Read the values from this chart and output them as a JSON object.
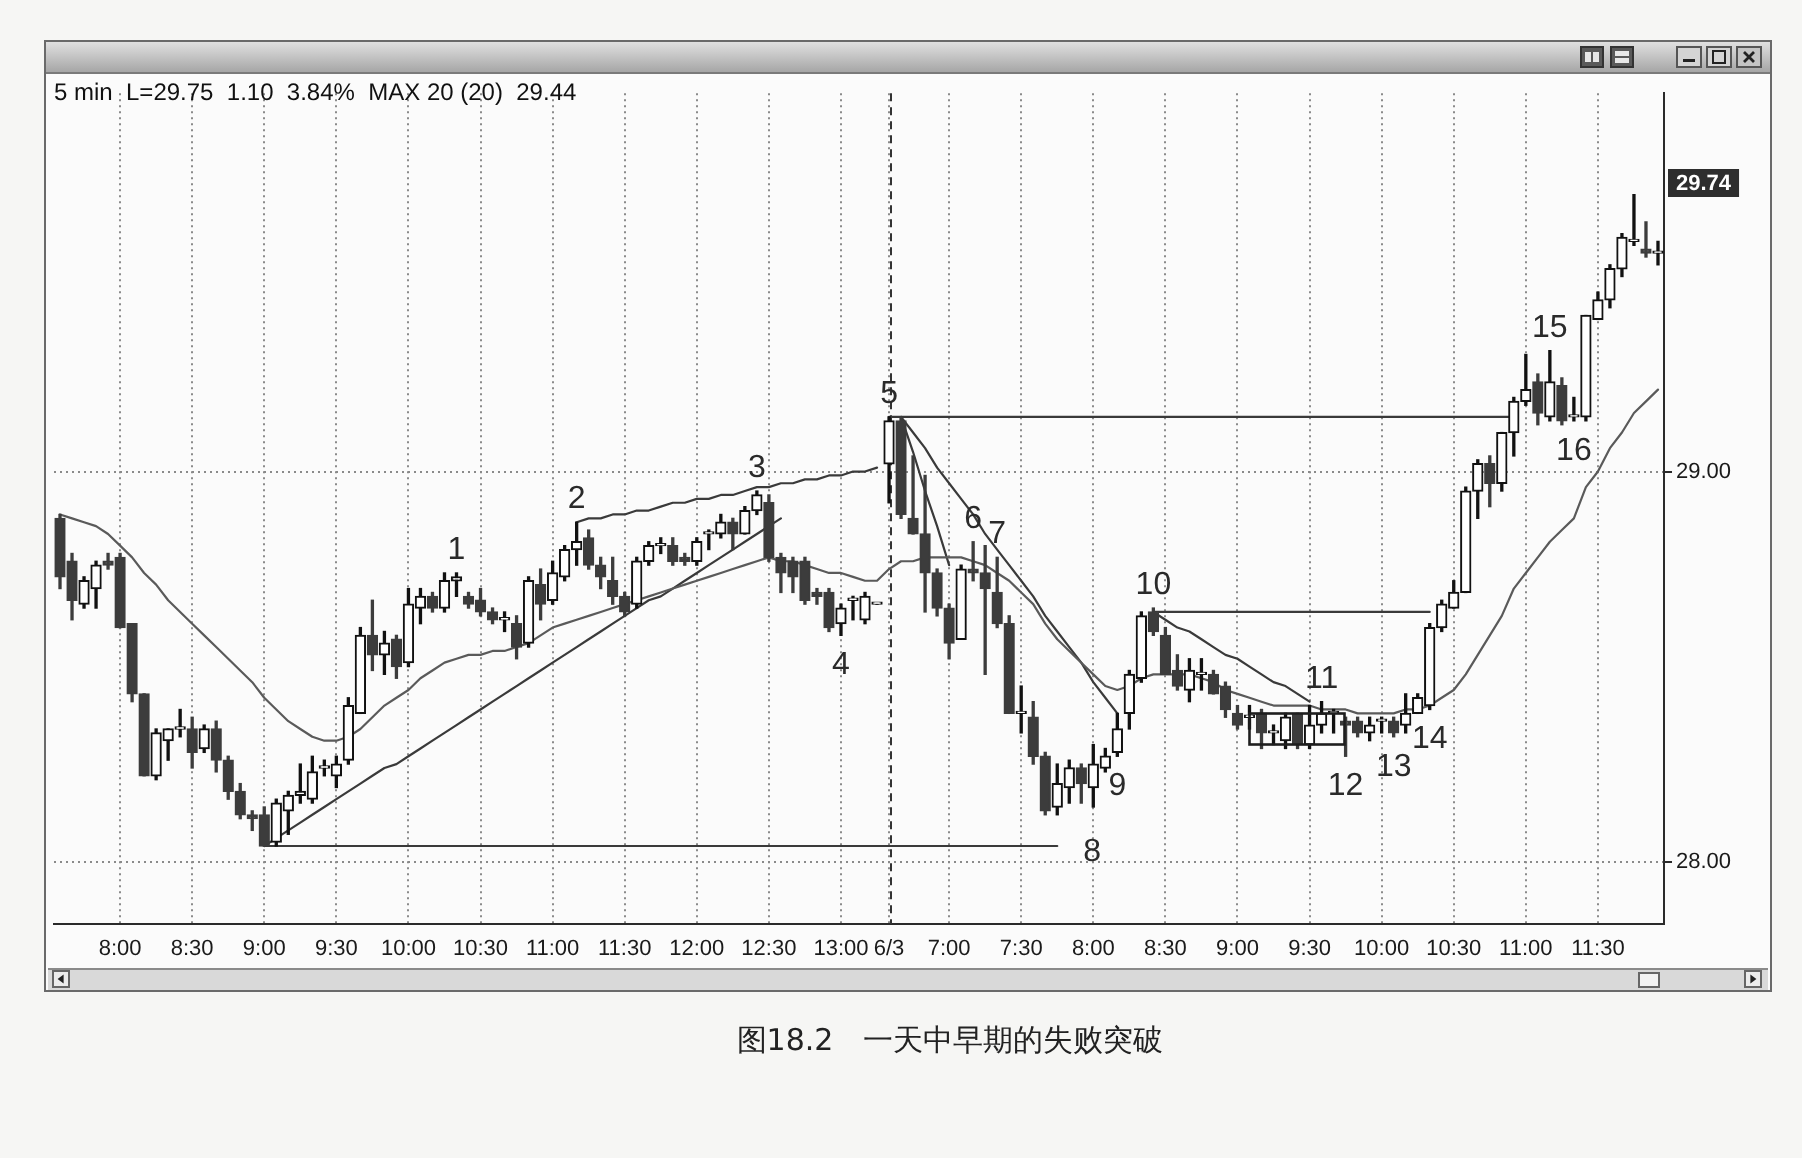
{
  "chart_data": {
    "type": "candlestick",
    "title": "图18.2　一天中早期的失败突破",
    "subtitle": "5 min  L=29.75  1.10  3.84%  MAX 20 (20)  29.44",
    "categories": [
      null,
      null,
      null,
      null,
      null,
      "8:00",
      null,
      null,
      null,
      null,
      null,
      "8:30",
      null,
      null,
      null,
      null,
      null,
      "9:00",
      null,
      null,
      null,
      null,
      null,
      "9:30",
      null,
      null,
      null,
      null,
      null,
      "10:00",
      null,
      null,
      null,
      null,
      null,
      "10:30",
      null,
      null,
      null,
      null,
      null,
      "11:00",
      null,
      null,
      null,
      null,
      null,
      "11:30",
      null,
      null,
      null,
      null,
      null,
      "12:00",
      null,
      null,
      null,
      null,
      null,
      "12:30",
      null,
      null,
      null,
      null,
      null,
      "13:00",
      null,
      null,
      null,
      "6/3",
      null,
      null,
      null,
      null,
      "7:00",
      null,
      null,
      null,
      null,
      null,
      "7:30",
      null,
      null,
      null,
      null,
      null,
      "8:00",
      null,
      null,
      null,
      null,
      null,
      "8:30",
      null,
      null,
      null,
      null,
      null,
      "9:00",
      null,
      null,
      null,
      null,
      null,
      "9:30",
      null,
      null,
      null,
      null,
      null,
      "10:00",
      null,
      null,
      null,
      null,
      null,
      "10:30",
      null,
      null,
      null,
      null,
      null,
      "11:00",
      null,
      null,
      null,
      null,
      null,
      "11:30",
      null,
      null,
      null,
      null,
      null
    ],
    "ohlc": [
      [
        28.88,
        28.89,
        28.7,
        28.73
      ],
      [
        28.77,
        28.79,
        28.62,
        28.67
      ],
      [
        28.66,
        28.73,
        28.65,
        28.72
      ],
      [
        28.7,
        28.77,
        28.65,
        28.76
      ],
      [
        28.77,
        28.79,
        28.75,
        28.76
      ],
      [
        28.78,
        28.79,
        28.6,
        28.6
      ],
      [
        28.61,
        28.61,
        28.41,
        28.43
      ],
      [
        28.43,
        28.43,
        28.22,
        28.22
      ],
      [
        28.22,
        28.34,
        28.21,
        28.33
      ],
      [
        28.31,
        28.34,
        28.26,
        28.34
      ],
      [
        28.34,
        28.39,
        28.32,
        28.34
      ],
      [
        28.34,
        28.37,
        28.24,
        28.28
      ],
      [
        28.29,
        28.35,
        28.28,
        28.34
      ],
      [
        28.34,
        28.36,
        28.23,
        28.26
      ],
      [
        28.26,
        28.27,
        28.16,
        28.18
      ],
      [
        28.18,
        28.2,
        28.11,
        28.12
      ],
      [
        28.12,
        28.13,
        28.08,
        28.11
      ],
      [
        28.12,
        28.14,
        28.04,
        28.04
      ],
      [
        28.05,
        28.16,
        28.04,
        28.15
      ],
      [
        28.13,
        28.18,
        28.07,
        28.17
      ],
      [
        28.17,
        28.25,
        28.15,
        28.18
      ],
      [
        28.16,
        28.27,
        28.15,
        28.23
      ],
      [
        28.24,
        28.26,
        28.22,
        28.24
      ],
      [
        28.22,
        28.27,
        28.19,
        28.25
      ],
      [
        28.26,
        28.42,
        28.25,
        28.4
      ],
      [
        28.38,
        28.6,
        28.38,
        28.58
      ],
      [
        28.58,
        28.67,
        28.49,
        28.53
      ],
      [
        28.53,
        28.59,
        28.48,
        28.56
      ],
      [
        28.57,
        28.58,
        28.47,
        28.5
      ],
      [
        28.51,
        28.7,
        28.5,
        28.66
      ],
      [
        28.65,
        28.7,
        28.61,
        28.68
      ],
      [
        28.68,
        28.69,
        28.64,
        28.65
      ],
      [
        28.65,
        28.74,
        28.64,
        28.72
      ],
      [
        28.72,
        28.74,
        28.68,
        28.73
      ],
      [
        28.68,
        28.69,
        28.65,
        28.66
      ],
      [
        28.67,
        28.7,
        28.63,
        28.64
      ],
      [
        28.64,
        28.65,
        28.61,
        28.62
      ],
      [
        28.62,
        28.64,
        28.59,
        28.62
      ],
      [
        28.61,
        28.63,
        28.52,
        28.55
      ],
      [
        28.56,
        28.73,
        28.55,
        28.72
      ],
      [
        28.71,
        28.75,
        28.62,
        28.66
      ],
      [
        28.67,
        28.77,
        28.66,
        28.74
      ],
      [
        28.73,
        28.81,
        28.72,
        28.8
      ],
      [
        28.8,
        28.87,
        28.76,
        28.82
      ],
      [
        28.83,
        28.85,
        28.75,
        28.76
      ],
      [
        28.76,
        28.78,
        28.7,
        28.73
      ],
      [
        28.72,
        28.78,
        28.66,
        28.68
      ],
      [
        28.68,
        28.69,
        28.63,
        28.64
      ],
      [
        28.66,
        28.78,
        28.65,
        28.77
      ],
      [
        28.77,
        28.82,
        28.76,
        28.81
      ],
      [
        28.81,
        28.83,
        28.79,
        28.81
      ],
      [
        28.81,
        28.83,
        28.76,
        28.77
      ],
      [
        28.78,
        28.79,
        28.76,
        28.77
      ],
      [
        28.77,
        28.83,
        28.76,
        28.82
      ],
      [
        28.84,
        28.85,
        28.8,
        28.84
      ],
      [
        28.84,
        28.89,
        28.83,
        28.87
      ],
      [
        28.87,
        28.88,
        28.8,
        28.84
      ],
      [
        28.84,
        28.91,
        28.84,
        28.9
      ],
      [
        28.9,
        28.95,
        28.89,
        28.94
      ],
      [
        28.92,
        28.94,
        28.77,
        28.78
      ],
      [
        28.78,
        28.79,
        28.69,
        28.74
      ],
      [
        28.77,
        28.78,
        28.69,
        28.73
      ],
      [
        28.77,
        28.78,
        28.66,
        28.67
      ],
      [
        28.69,
        28.7,
        28.66,
        28.68
      ],
      [
        28.69,
        28.7,
        28.59,
        28.6
      ],
      [
        28.61,
        28.66,
        28.58,
        28.65
      ],
      [
        28.67,
        28.68,
        28.62,
        28.67
      ],
      [
        28.62,
        28.69,
        28.61,
        28.68
      ],
      [
        28.66,
        28.66,
        28.66,
        28.66
      ],
      [
        29.02,
        29.14,
        28.92,
        29.13
      ],
      [
        29.13,
        29.14,
        28.88,
        28.89
      ],
      [
        28.88,
        29.04,
        28.84,
        28.84
      ],
      [
        28.84,
        28.99,
        28.64,
        28.74
      ],
      [
        28.74,
        28.75,
        28.63,
        28.65
      ],
      [
        28.65,
        28.66,
        28.52,
        28.56
      ],
      [
        28.57,
        28.76,
        28.57,
        28.75
      ],
      [
        28.75,
        28.82,
        28.72,
        28.74
      ],
      [
        28.74,
        28.81,
        28.48,
        28.7
      ],
      [
        28.69,
        28.78,
        28.6,
        28.61
      ],
      [
        28.61,
        28.63,
        28.38,
        28.38
      ],
      [
        28.38,
        28.45,
        28.33,
        28.38
      ],
      [
        28.37,
        28.41,
        28.25,
        28.27
      ],
      [
        28.27,
        28.28,
        28.12,
        28.13
      ],
      [
        28.14,
        28.25,
        28.12,
        28.2
      ],
      [
        28.19,
        28.26,
        28.15,
        28.24
      ],
      [
        28.24,
        28.25,
        28.15,
        28.2
      ],
      [
        28.19,
        28.3,
        28.14,
        28.25
      ],
      [
        28.24,
        28.29,
        28.23,
        28.27
      ],
      [
        28.28,
        28.38,
        28.27,
        28.34
      ],
      [
        28.38,
        28.49,
        28.34,
        28.48
      ],
      [
        28.47,
        28.64,
        28.46,
        28.63
      ],
      [
        28.64,
        28.65,
        28.58,
        28.59
      ],
      [
        28.58,
        28.6,
        28.48,
        28.48
      ],
      [
        28.49,
        28.53,
        28.44,
        28.45
      ],
      [
        28.44,
        28.52,
        28.41,
        28.49
      ],
      [
        28.48,
        28.52,
        28.44,
        28.48
      ],
      [
        28.48,
        28.49,
        28.43,
        28.43
      ],
      [
        28.45,
        28.46,
        28.37,
        28.39
      ],
      [
        28.38,
        28.4,
        28.34,
        28.35
      ],
      [
        28.37,
        28.4,
        28.34,
        28.37
      ],
      [
        28.38,
        28.39,
        28.29,
        28.33
      ],
      [
        28.33,
        28.35,
        28.3,
        28.33
      ],
      [
        28.31,
        28.38,
        28.29,
        28.37
      ],
      [
        28.38,
        28.38,
        28.29,
        28.3
      ],
      [
        28.3,
        28.4,
        28.29,
        28.35
      ],
      [
        28.35,
        28.41,
        28.33,
        28.38
      ],
      [
        28.38,
        28.39,
        28.33,
        28.38
      ],
      [
        28.36,
        28.37,
        28.27,
        28.35
      ],
      [
        28.36,
        28.37,
        28.32,
        28.33
      ],
      [
        28.33,
        28.37,
        28.31,
        28.35
      ],
      [
        28.36,
        28.37,
        28.33,
        28.36
      ],
      [
        28.36,
        28.37,
        28.32,
        28.33
      ],
      [
        28.35,
        28.43,
        28.33,
        28.38
      ],
      [
        28.38,
        28.43,
        28.38,
        28.42
      ],
      [
        28.4,
        28.61,
        28.39,
        28.6
      ],
      [
        28.6,
        28.67,
        28.59,
        28.66
      ],
      [
        28.65,
        28.72,
        28.65,
        28.69
      ],
      [
        28.69,
        28.96,
        28.69,
        28.95
      ],
      [
        28.95,
        29.03,
        28.88,
        29.02
      ],
      [
        29.02,
        29.04,
        28.91,
        28.97
      ],
      [
        28.97,
        29.1,
        28.95,
        29.1
      ],
      [
        29.1,
        29.19,
        29.04,
        29.18
      ],
      [
        29.18,
        29.3,
        29.17,
        29.21
      ],
      [
        29.23,
        29.25,
        29.12,
        29.15
      ],
      [
        29.14,
        29.31,
        29.13,
        29.23
      ],
      [
        29.22,
        29.24,
        29.12,
        29.13
      ],
      [
        29.14,
        29.19,
        29.13,
        29.14
      ],
      [
        29.14,
        29.4,
        29.13,
        29.4
      ],
      [
        29.39,
        29.46,
        29.39,
        29.44
      ],
      [
        29.44,
        29.53,
        29.42,
        29.52
      ],
      [
        29.52,
        29.61,
        29.5,
        29.6
      ],
      [
        29.59,
        29.71,
        29.58,
        29.59
      ],
      [
        29.57,
        29.64,
        29.55,
        29.56
      ],
      [
        29.56,
        29.59,
        29.53,
        29.56
      ]
    ],
    "value_labels": [
      null,
      null,
      null,
      null,
      null,
      null,
      null,
      null,
      null,
      null,
      null,
      null,
      null,
      null,
      null,
      null,
      null,
      null,
      null,
      null,
      null,
      null,
      null,
      null,
      null,
      null,
      null,
      null,
      null,
      null,
      null,
      null,
      null,
      "1",
      null,
      null,
      null,
      null,
      null,
      null,
      null,
      null,
      null,
      "2",
      null,
      null,
      null,
      null,
      null,
      null,
      null,
      null,
      null,
      null,
      null,
      null,
      null,
      null,
      "3",
      null,
      null,
      null,
      null,
      null,
      null,
      "4",
      null,
      null,
      null,
      "5",
      null,
      null,
      null,
      null,
      null,
      null,
      "6",
      null,
      "7",
      null,
      null,
      null,
      null,
      null,
      null,
      null,
      null,
      null,
      "9",
      null,
      null,
      "10",
      null,
      null,
      null,
      null,
      null,
      null,
      null,
      null,
      null,
      null,
      null,
      null,
      null,
      "11",
      null,
      "12",
      null,
      null,
      null,
      "13",
      null,
      null,
      "14",
      null,
      null,
      null,
      null,
      null,
      null,
      null,
      null,
      null,
      "15",
      null,
      "16",
      null,
      null,
      null,
      null,
      null,
      null,
      null
    ],
    "series": [
      {
        "type": "line",
        "color": "#5a5a5a",
        "values": [
          28.89,
          28.88,
          28.87,
          28.86,
          28.84,
          28.81,
          28.78,
          28.74,
          28.71,
          28.67,
          28.64,
          28.61,
          28.58,
          28.55,
          28.52,
          28.49,
          28.46,
          28.42,
          28.39,
          28.36,
          28.34,
          28.32,
          28.31,
          28.31,
          28.32,
          28.34,
          28.37,
          28.4,
          28.42,
          28.44,
          28.47,
          28.49,
          28.51,
          28.52,
          28.53,
          28.53,
          28.54,
          28.54,
          28.55,
          28.56,
          28.58,
          28.6,
          28.61,
          28.62,
          28.63,
          28.64,
          28.65,
          28.66,
          28.67,
          28.68,
          28.69,
          28.7,
          28.71,
          28.72,
          28.73,
          28.74,
          28.75,
          28.76,
          28.77,
          28.78,
          28.77,
          28.77,
          28.76,
          28.75,
          28.74,
          28.74,
          28.73,
          28.72,
          28.72,
          28.75,
          28.77,
          28.77,
          28.78,
          28.78,
          28.78,
          28.78,
          28.77,
          28.76,
          28.74,
          28.72,
          28.69,
          28.66,
          28.61,
          28.57,
          28.54,
          28.51,
          28.48,
          28.45,
          28.44,
          28.45,
          28.47,
          28.48,
          28.48,
          28.48,
          28.48,
          28.47,
          28.46,
          28.44,
          28.43,
          28.42,
          28.41,
          28.4,
          28.4,
          28.4,
          28.4,
          28.39,
          28.39,
          28.39,
          28.38,
          28.38,
          28.38,
          28.38,
          28.39,
          28.39,
          28.4,
          28.42,
          28.44,
          28.48,
          28.53,
          28.58,
          28.63,
          28.7,
          28.74,
          28.78,
          28.82,
          28.85,
          28.88,
          28.96,
          29.0,
          29.06,
          29.1,
          29.15,
          29.18,
          29.21
        ]
      },
      {
        "type": "line",
        "name": "8",
        "color": "#3a3a3a",
        "values": [
          null,
          null,
          null,
          null,
          null,
          null,
          null,
          null,
          null,
          null,
          null,
          null,
          null,
          null,
          null,
          null,
          null,
          28.04,
          28.04,
          28.04,
          28.04,
          28.04,
          28.04,
          28.04,
          28.04,
          28.04,
          28.04,
          28.04,
          28.04,
          28.04,
          28.04,
          28.04,
          28.04,
          28.04,
          28.04,
          28.04,
          28.04,
          28.04,
          28.04,
          28.04,
          28.04,
          28.04,
          28.04,
          28.04,
          28.04,
          28.04,
          28.04,
          28.04,
          28.04,
          28.04,
          28.04,
          28.04,
          28.04,
          28.04,
          28.04,
          28.04,
          28.04,
          28.04,
          28.04,
          28.04,
          28.04,
          28.04,
          28.04,
          28.04,
          28.04,
          28.04,
          28.04,
          28.04,
          28.04,
          28.04,
          28.04,
          28.04,
          28.04,
          28.04,
          28.04,
          28.04,
          28.04,
          28.04,
          28.04,
          28.04,
          28.04,
          28.04,
          28.04,
          28.04,
          null,
          null,
          null,
          null,
          null,
          null,
          null,
          null,
          null,
          null,
          null,
          null,
          null,
          null,
          null,
          null,
          null,
          null,
          null,
          null,
          null,
          null,
          null,
          null,
          null,
          null,
          null,
          null,
          null,
          null,
          null,
          null,
          null,
          null,
          null,
          null,
          null,
          null,
          null,
          null,
          null,
          null,
          null,
          null,
          null,
          null,
          null,
          null,
          null,
          null
        ]
      },
      {
        "type": "line",
        "color": "#3a3a3a",
        "values": [
          null,
          null,
          null,
          null,
          null,
          null,
          null,
          null,
          null,
          null,
          null,
          null,
          null,
          null,
          null,
          null,
          null,
          28.04,
          28.06,
          28.08,
          28.1,
          28.12,
          28.14,
          28.16,
          28.18,
          28.2,
          28.22,
          28.24,
          28.25,
          28.27,
          28.29,
          28.31,
          28.33,
          28.35,
          28.37,
          28.39,
          28.41,
          28.43,
          28.45,
          28.47,
          28.49,
          28.51,
          28.53,
          28.55,
          28.57,
          28.59,
          28.61,
          28.63,
          28.65,
          28.67,
          28.68,
          28.7,
          28.72,
          28.74,
          28.76,
          28.78,
          28.8,
          28.82,
          28.84,
          28.86,
          28.88,
          null,
          null,
          null,
          null,
          null,
          null,
          null,
          null,
          null,
          null,
          null,
          null,
          null,
          null,
          null,
          null,
          null,
          null,
          null,
          null,
          null,
          null,
          null,
          null,
          null,
          null,
          null,
          null,
          null,
          null,
          null,
          null,
          null,
          null,
          null,
          null,
          null,
          null,
          null,
          null,
          null,
          null,
          null,
          null,
          null,
          null,
          null,
          null,
          null,
          null,
          null,
          null,
          null,
          null,
          null,
          null,
          null,
          null,
          null,
          null,
          null,
          null,
          null,
          null,
          null,
          null,
          null,
          null,
          null,
          null,
          null,
          null,
          null
        ]
      },
      {
        "type": "line",
        "color": "#3a3a3a",
        "values": [
          null,
          null,
          null,
          null,
          null,
          null,
          null,
          null,
          null,
          null,
          null,
          null,
          null,
          null,
          null,
          null,
          null,
          null,
          null,
          null,
          null,
          null,
          null,
          null,
          null,
          null,
          null,
          null,
          null,
          null,
          null,
          null,
          null,
          null,
          null,
          null,
          null,
          null,
          null,
          null,
          null,
          null,
          null,
          28.87,
          28.88,
          28.88,
          28.89,
          28.89,
          28.9,
          28.9,
          28.91,
          28.92,
          28.92,
          28.93,
          28.93,
          28.94,
          28.94,
          28.95,
          28.96,
          28.96,
          28.97,
          28.97,
          28.98,
          28.98,
          28.99,
          28.99,
          29.0,
          29.0,
          29.01,
          null,
          null,
          null,
          null,
          null,
          null,
          null,
          null,
          null,
          null,
          null,
          null,
          null,
          null,
          null,
          null,
          null,
          null,
          null,
          null,
          null,
          null,
          null,
          null,
          null,
          null,
          null,
          null,
          null,
          null,
          null,
          null,
          null,
          null,
          null,
          null,
          null,
          null,
          null,
          null,
          null,
          null,
          null,
          null,
          null,
          null,
          null,
          null,
          null,
          null,
          null,
          null,
          null,
          null,
          null,
          null,
          null,
          null,
          null,
          null,
          null,
          null,
          null,
          null,
          null
        ]
      },
      {
        "type": "line",
        "color": "#3a3a3a",
        "values": [
          null,
          null,
          null,
          null,
          null,
          null,
          null,
          null,
          null,
          null,
          null,
          null,
          null,
          null,
          null,
          null,
          null,
          null,
          null,
          null,
          null,
          null,
          null,
          null,
          null,
          null,
          null,
          null,
          null,
          null,
          null,
          null,
          null,
          null,
          null,
          null,
          null,
          null,
          null,
          null,
          null,
          null,
          null,
          null,
          null,
          null,
          null,
          null,
          null,
          null,
          null,
          null,
          null,
          null,
          null,
          null,
          null,
          null,
          null,
          null,
          null,
          null,
          null,
          null,
          null,
          null,
          null,
          null,
          null,
          29.14,
          29.14,
          29.14,
          29.14,
          29.14,
          29.14,
          29.14,
          29.14,
          29.14,
          29.14,
          29.14,
          29.14,
          29.14,
          29.14,
          29.14,
          29.14,
          29.14,
          29.14,
          29.14,
          29.14,
          29.14,
          29.14,
          29.14,
          29.14,
          29.14,
          29.14,
          29.14,
          29.14,
          29.14,
          29.14,
          29.14,
          29.14,
          29.14,
          29.14,
          29.14,
          29.14,
          29.14,
          29.14,
          29.14,
          29.14,
          29.14,
          29.14,
          29.14,
          29.14,
          29.14,
          29.14,
          29.14,
          29.14,
          29.14,
          29.14,
          29.14,
          29.14,
          29.14,
          null,
          null,
          null,
          null,
          null,
          null,
          null,
          null,
          null,
          null,
          null,
          null
        ]
      },
      {
        "type": "line",
        "color": "#3a3a3a",
        "values": [
          null,
          null,
          null,
          null,
          null,
          null,
          null,
          null,
          null,
          null,
          null,
          null,
          null,
          null,
          null,
          null,
          null,
          null,
          null,
          null,
          null,
          null,
          null,
          null,
          null,
          null,
          null,
          null,
          null,
          null,
          null,
          null,
          null,
          null,
          null,
          null,
          null,
          null,
          null,
          null,
          null,
          null,
          null,
          null,
          null,
          null,
          null,
          null,
          null,
          null,
          null,
          null,
          null,
          null,
          null,
          null,
          null,
          null,
          null,
          null,
          null,
          null,
          null,
          null,
          null,
          null,
          null,
          null,
          null,
          null,
          29.14,
          29.1,
          29.06,
          29.01,
          28.97,
          28.93,
          28.89,
          28.84,
          28.8,
          28.76,
          28.72,
          28.68,
          28.63,
          28.59,
          28.55,
          28.51,
          28.46,
          28.42,
          28.38,
          null,
          null,
          null,
          null,
          null,
          null,
          null,
          null,
          null,
          null,
          null,
          null,
          null,
          null,
          null,
          null,
          null,
          null,
          null,
          null,
          null,
          null,
          null,
          null,
          null,
          null,
          null,
          null,
          null,
          null,
          null,
          null,
          null,
          null,
          null,
          null,
          null,
          null,
          null,
          null,
          null,
          null,
          null,
          null,
          null
        ]
      },
      {
        "type": "line",
        "color": "#3a3a3a",
        "values": [
          null,
          null,
          null,
          null,
          null,
          null,
          null,
          null,
          null,
          null,
          null,
          null,
          null,
          null,
          null,
          null,
          null,
          null,
          null,
          null,
          null,
          null,
          null,
          null,
          null,
          null,
          null,
          null,
          null,
          null,
          null,
          null,
          null,
          null,
          null,
          null,
          null,
          null,
          null,
          null,
          null,
          null,
          null,
          null,
          null,
          null,
          null,
          null,
          null,
          null,
          null,
          null,
          null,
          null,
          null,
          null,
          null,
          null,
          null,
          null,
          null,
          null,
          null,
          null,
          null,
          null,
          null,
          null,
          null,
          null,
          29.14,
          29.05,
          28.95,
          28.86,
          28.76,
          null,
          null,
          null,
          null,
          null,
          null,
          null,
          null,
          null,
          null,
          null,
          null,
          null,
          null,
          null,
          null,
          null,
          null,
          null,
          null,
          null,
          null,
          null,
          null,
          null,
          null,
          null,
          null,
          null,
          null,
          null,
          null,
          null,
          null,
          null,
          null,
          null,
          null,
          null,
          null,
          null,
          null,
          null,
          null,
          null,
          null,
          null,
          null,
          null,
          null,
          null,
          null,
          null,
          null,
          null,
          null,
          null,
          null,
          null
        ]
      },
      {
        "type": "line",
        "color": "#3a3a3a",
        "values": [
          null,
          null,
          null,
          null,
          null,
          null,
          null,
          null,
          null,
          null,
          null,
          null,
          null,
          null,
          null,
          null,
          null,
          null,
          null,
          null,
          null,
          null,
          null,
          null,
          null,
          null,
          null,
          null,
          null,
          null,
          null,
          null,
          null,
          null,
          null,
          null,
          null,
          null,
          null,
          null,
          null,
          null,
          null,
          null,
          null,
          null,
          null,
          null,
          null,
          null,
          null,
          null,
          null,
          null,
          null,
          null,
          null,
          null,
          null,
          null,
          null,
          null,
          null,
          null,
          null,
          null,
          null,
          null,
          null,
          null,
          null,
          null,
          null,
          null,
          null,
          null,
          null,
          null,
          null,
          null,
          null,
          null,
          null,
          null,
          null,
          null,
          null,
          null,
          null,
          null,
          null,
          28.64,
          28.62,
          28.6,
          28.59,
          28.57,
          28.55,
          28.53,
          28.52,
          28.5,
          28.48,
          28.46,
          28.45,
          28.43,
          28.41,
          null,
          null,
          null,
          null,
          null,
          null,
          null,
          null,
          null,
          null,
          null,
          null,
          null,
          null,
          null,
          null,
          null,
          null,
          null,
          null,
          null,
          null,
          null,
          null,
          null,
          null,
          null,
          null,
          null
        ]
      },
      {
        "type": "line",
        "color": "#3a3a3a",
        "values": [
          null,
          null,
          null,
          null,
          null,
          null,
          null,
          null,
          null,
          null,
          null,
          null,
          null,
          null,
          null,
          null,
          null,
          null,
          null,
          null,
          null,
          null,
          null,
          null,
          null,
          null,
          null,
          null,
          null,
          null,
          null,
          null,
          null,
          null,
          null,
          null,
          null,
          null,
          null,
          null,
          null,
          null,
          null,
          null,
          null,
          null,
          null,
          null,
          null,
          null,
          null,
          null,
          null,
          null,
          null,
          null,
          null,
          null,
          null,
          null,
          null,
          null,
          null,
          null,
          null,
          null,
          null,
          null,
          null,
          null,
          null,
          null,
          null,
          null,
          null,
          null,
          null,
          null,
          null,
          null,
          null,
          null,
          null,
          null,
          null,
          null,
          null,
          null,
          null,
          null,
          null,
          28.64,
          28.64,
          28.64,
          28.64,
          28.64,
          28.64,
          28.64,
          28.64,
          28.64,
          28.64,
          28.64,
          28.64,
          28.64,
          28.64,
          28.64,
          28.64,
          28.64,
          28.64,
          28.64,
          28.64,
          28.64,
          28.64,
          28.64,
          28.64,
          null,
          null,
          null,
          null,
          null,
          null,
          null,
          null,
          null,
          null,
          null,
          null,
          null,
          null,
          null,
          null,
          null,
          null,
          null
        ]
      }
    ],
    "ylim": [
      27.84,
      29.97
    ],
    "yticks": [
      {
        "value": 28,
        "label": "28.00"
      },
      {
        "value": 29,
        "label": "29.00"
      }
    ],
    "grid": true,
    "annotations": [
      {
        "text": "29.74",
        "y": 29.74
      }
    ],
    "ref_lines": [
      {
        "axis": "x",
        "value": "6/3",
        "line_style": "dashed",
        "color": "#333333"
      }
    ]
  }
}
